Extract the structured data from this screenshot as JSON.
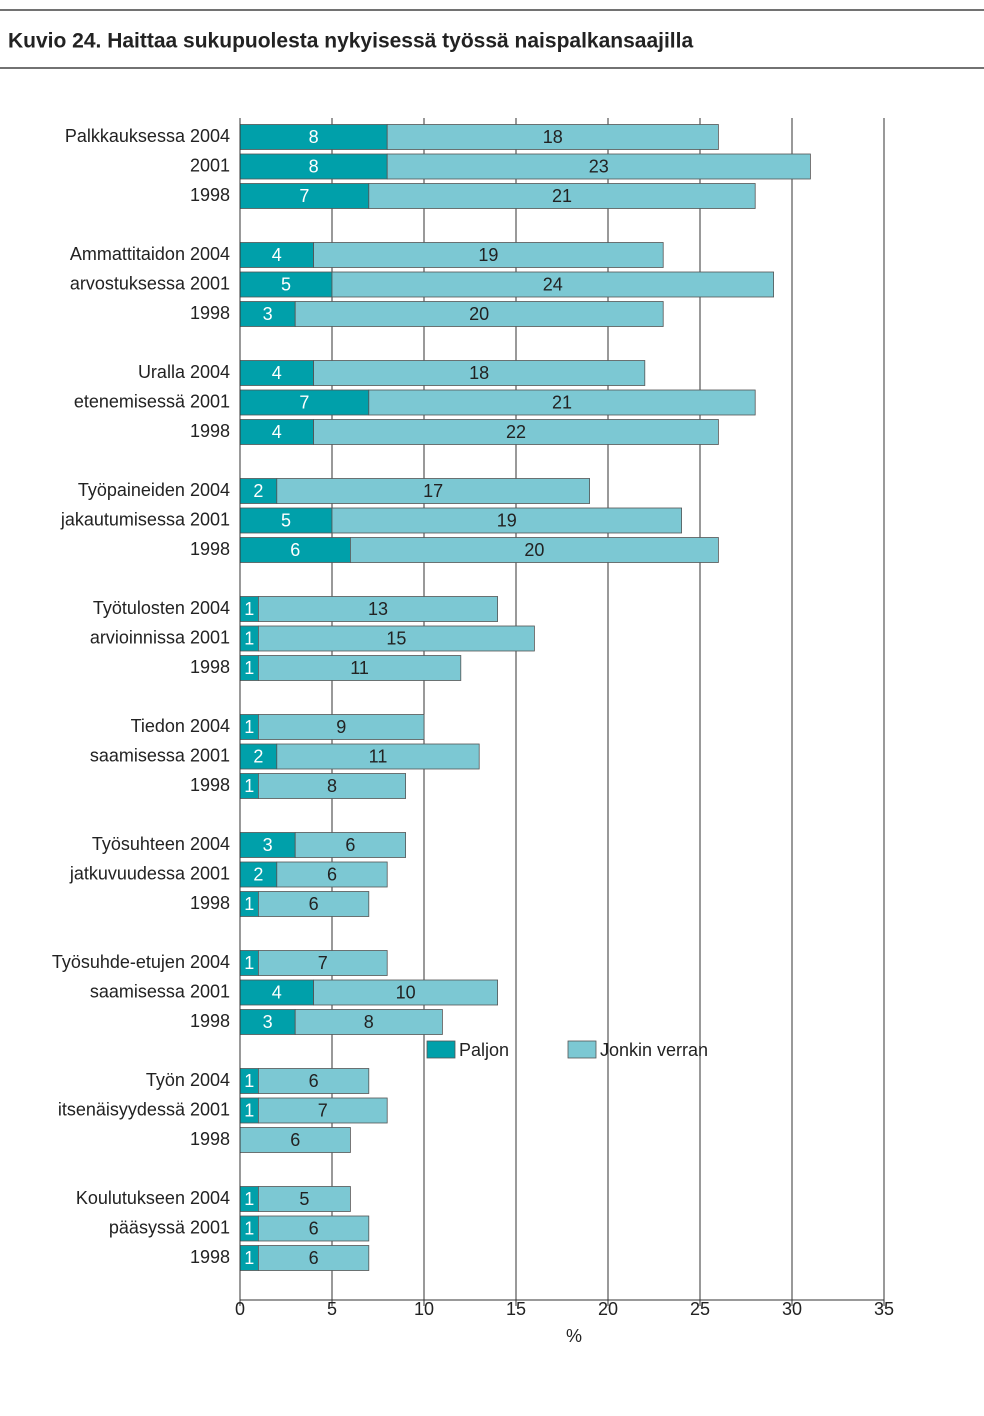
{
  "chart_data": {
    "type": "stacked-barh",
    "title": "Kuvio 24. Haittaa sukupuolesta nykyisessä työssä naispalkansaajilla",
    "x_label": "%",
    "categories": [
      "Palkkauksessa 2004",
      "2001",
      "1998",
      "Ammattitaidon 2004",
      "arvostuksessa 2001",
      "1998",
      "Uralla 2004",
      "etenemisessä 2001",
      "1998",
      "Työpaineiden 2004",
      "jakautumisessa 2001",
      "1998",
      "Työtulosten 2004",
      "arvioinnissa 2001",
      "1998",
      "Tiedon 2004",
      "saamisessa 2001",
      "1998",
      "Työsuhteen 2004",
      "jatkuvuudessa 2001",
      "1998",
      "Työsuhde-etujen 2004",
      "saamisessa 2001",
      "1998",
      "Työn 2004",
      "itsenäisyydessä 2001",
      "1998",
      "Koulutukseen 2004",
      "pääsyssä 2001",
      "1998"
    ],
    "series": [
      {
        "name": "Paljon",
        "color": "#00a0aa",
        "label_color": "#ffffff",
        "values": [
          8,
          8,
          7,
          4,
          5,
          3,
          4,
          7,
          4,
          2,
          5,
          6,
          1,
          1,
          1,
          1,
          2,
          1,
          3,
          2,
          1,
          1,
          4,
          3,
          1,
          1,
          0,
          1,
          1,
          1
        ]
      },
      {
        "name": "Jonkin verran",
        "color": "#7cc8d3",
        "label_color": "#222222",
        "values": [
          18,
          23,
          21,
          19,
          24,
          20,
          18,
          21,
          22,
          17,
          19,
          20,
          13,
          15,
          11,
          9,
          11,
          8,
          6,
          6,
          6,
          7,
          10,
          8,
          6,
          7,
          6,
          5,
          6,
          6
        ]
      }
    ],
    "xlim": [
      0,
      35
    ],
    "xticks": [
      0,
      5,
      10,
      15,
      20,
      25,
      30,
      35
    ],
    "grid": true
  }
}
